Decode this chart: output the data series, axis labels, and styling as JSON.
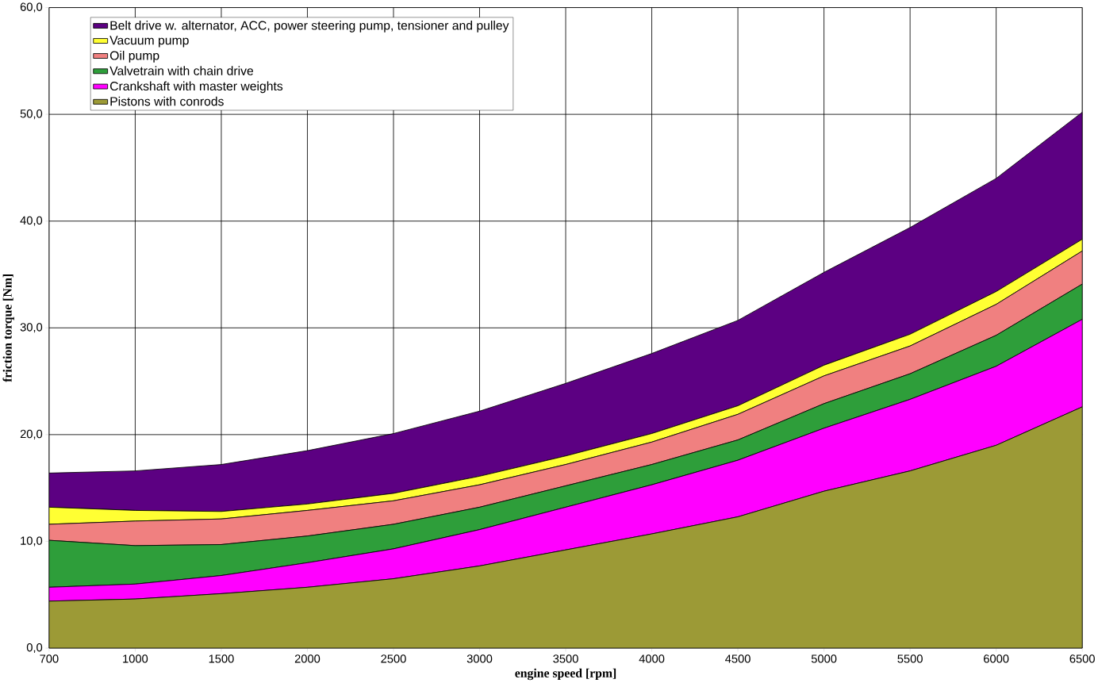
{
  "chart_data": {
    "type": "area",
    "stacked": true,
    "xlabel": "engine speed  [rpm]",
    "ylabel": "friction torque [Nm]",
    "categories": [
      "700",
      "1000",
      "1500",
      "2000",
      "2500",
      "3000",
      "3500",
      "4000",
      "4500",
      "5000",
      "5500",
      "6000",
      "6500"
    ],
    "ylim": [
      0,
      60
    ],
    "yticks": [
      {
        "value": 0,
        "label": "0,0"
      },
      {
        "value": 10,
        "label": "10,0"
      },
      {
        "value": 20,
        "label": "20,0"
      },
      {
        "value": 30,
        "label": "30,0"
      },
      {
        "value": 40,
        "label": "40,0"
      },
      {
        "value": 50,
        "label": "50,0"
      },
      {
        "value": 60,
        "label": "60,0"
      }
    ],
    "grid": true,
    "legend": "top left",
    "series": [
      {
        "name": "Pistons with conrods",
        "color": "#9c9a36",
        "values": [
          4.4,
          4.6,
          5.1,
          5.7,
          6.5,
          7.7,
          9.2,
          10.7,
          12.3,
          14.7,
          16.6,
          19.0,
          22.6
        ]
      },
      {
        "name": "Crankshaft with master weights",
        "color": "#ff00ff",
        "values": [
          1.3,
          1.4,
          1.7,
          2.3,
          2.8,
          3.4,
          4.0,
          4.6,
          5.3,
          5.9,
          6.7,
          7.4,
          8.2
        ]
      },
      {
        "name": "Valvetrain with chain drive",
        "color": "#2e9e3a",
        "values": [
          4.4,
          3.6,
          2.9,
          2.5,
          2.3,
          2.1,
          2.0,
          1.9,
          1.9,
          2.3,
          2.4,
          2.9,
          3.3
        ]
      },
      {
        "name": "Oil pump",
        "color": "#f08080",
        "values": [
          1.5,
          2.3,
          2.4,
          2.4,
          2.2,
          2.1,
          2.0,
          2.1,
          2.4,
          2.6,
          2.6,
          2.9,
          3.1
        ]
      },
      {
        "name": "Vacuum pump",
        "color": "#ffff33",
        "values": [
          1.6,
          1.0,
          0.7,
          0.6,
          0.7,
          0.8,
          0.8,
          0.8,
          0.8,
          1.0,
          1.1,
          1.2,
          1.1
        ]
      },
      {
        "name": "Belt drive w. alternator, ACC, power steering pump, tensioner and pulley",
        "color": "#5c0082",
        "values": [
          3.2,
          3.7,
          4.4,
          5.0,
          5.6,
          6.1,
          6.8,
          7.5,
          8.0,
          8.7,
          10.0,
          10.6,
          11.9
        ]
      }
    ]
  }
}
